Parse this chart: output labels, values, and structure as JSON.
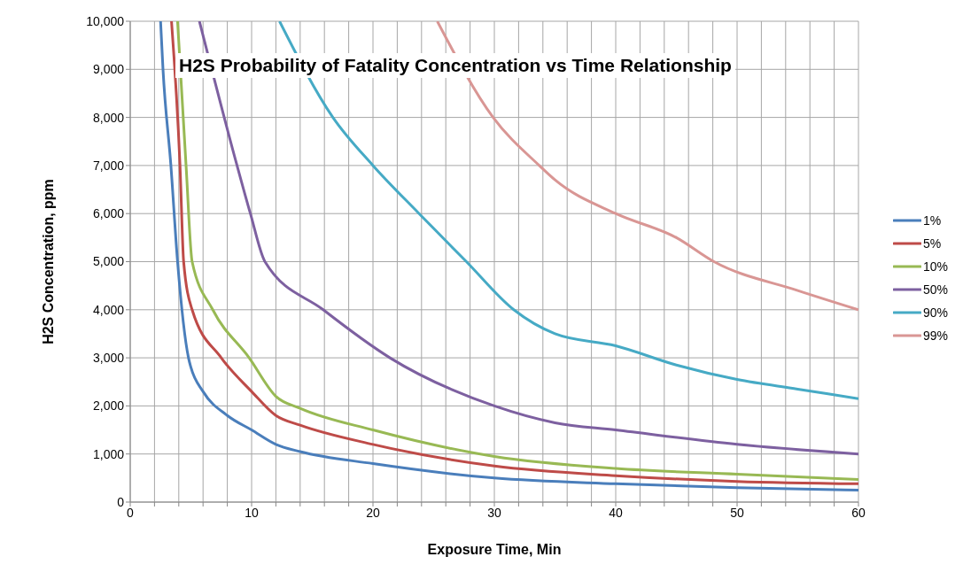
{
  "chart_data": {
    "type": "line",
    "title": "H2S Probability of Fatality Concentration vs Time Relationship",
    "xlabel": "Exposure Time, Min",
    "ylabel": "H2S Concentration, ppm",
    "xlim": [
      0,
      60
    ],
    "xticks": [
      0,
      {
        "value": 2,
        "label": null
      },
      {
        "value": 4,
        "label": null
      },
      {
        "value": 6,
        "label": null
      },
      {
        "value": 8,
        "label": null
      },
      10,
      {
        "value": 12,
        "label": null
      },
      {
        "value": 14,
        "label": null
      },
      {
        "value": 16,
        "label": null
      },
      {
        "value": 18,
        "label": null
      },
      20,
      {
        "value": 22,
        "label": null
      },
      {
        "value": 24,
        "label": null
      },
      {
        "value": 26,
        "label": null
      },
      {
        "value": 28,
        "label": null
      },
      30,
      {
        "value": 32,
        "label": null
      },
      {
        "value": 34,
        "label": null
      },
      {
        "value": 36,
        "label": null
      },
      {
        "value": 38,
        "label": null
      },
      40,
      {
        "value": 42,
        "label": null
      },
      {
        "value": 44,
        "label": null
      },
      {
        "value": 46,
        "label": null
      },
      {
        "value": 48,
        "label": null
      },
      50,
      {
        "value": 52,
        "label": null
      },
      {
        "value": 54,
        "label": null
      },
      {
        "value": 56,
        "label": null
      },
      {
        "value": 58,
        "label": null
      },
      60
    ],
    "ylim": [
      0,
      10000
    ],
    "yticks": [
      {
        "value": 0,
        "label": "0"
      },
      {
        "value": 1000,
        "label": "1,000"
      },
      {
        "value": 2000,
        "label": "2,000"
      },
      {
        "value": 3000,
        "label": "3,000"
      },
      {
        "value": 4000,
        "label": "4,000"
      },
      {
        "value": 5000,
        "label": "5,000"
      },
      {
        "value": 6000,
        "label": "6,000"
      },
      {
        "value": 7000,
        "label": "7,000"
      },
      {
        "value": 8000,
        "label": "8,000"
      },
      {
        "value": 9000,
        "label": "9,000"
      },
      {
        "value": 10000,
        "label": "10,000"
      }
    ],
    "grid": true,
    "legend": "right",
    "marker": "none",
    "line_style": "solid",
    "series": [
      {
        "name": "1%",
        "color": "#4a7ebb",
        "x": [
          2.5,
          2.7,
          3.35,
          3.9,
          4.8,
          5,
          6,
          8,
          10,
          12,
          14,
          20,
          30,
          40,
          50,
          60
        ],
        "values": [
          10000,
          9000,
          7000,
          5000,
          3000,
          2800,
          2300,
          1800,
          1500,
          1200,
          1050,
          800,
          500,
          380,
          300,
          250
        ]
      },
      {
        "name": "5%",
        "color": "#be4b48",
        "x": [
          3.4,
          4.1,
          4.4,
          5.1,
          7.5,
          10,
          12,
          14,
          20,
          30,
          40,
          50,
          60
        ],
        "values": [
          10000,
          7000,
          5000,
          4000,
          3000,
          2300,
          1800,
          1600,
          1200,
          750,
          550,
          430,
          380
        ]
      },
      {
        "name": "10%",
        "color": "#98b954",
        "x": [
          3.9,
          4.6,
          5.1,
          6.8,
          9.8,
          12,
          14,
          20,
          30,
          40,
          50,
          60
        ],
        "values": [
          10000,
          7000,
          5000,
          4000,
          3000,
          2200,
          1950,
          1500,
          950,
          700,
          580,
          470
        ]
      },
      {
        "name": "50%",
        "color": "#7d60a0",
        "x": [
          5.7,
          8.8,
          9.9,
          11.1,
          15.9,
          21.4,
          30,
          35,
          40,
          50,
          60
        ],
        "values": [
          10000,
          7000,
          6000,
          5000,
          4000,
          3000,
          2000,
          1650,
          1500,
          1200,
          1000
        ]
      },
      {
        "name": "90%",
        "color": "#46aac5",
        "x": [
          12.3,
          16.7,
          20,
          23.8,
          27.7,
          31.6,
          35,
          40,
          45,
          50,
          55,
          60
        ],
        "values": [
          10000,
          8000,
          7000,
          6000,
          5000,
          4000,
          3500,
          3250,
          2850,
          2550,
          2350,
          2150
        ]
      },
      {
        "name": "99%",
        "color": "#d99694",
        "x": [
          25.3,
          29.9,
          33.7,
          35,
          40,
          45,
          48.1,
          55,
          60
        ],
        "values": [
          10000,
          8000,
          7000,
          6700,
          6000,
          5500,
          5000,
          4400,
          4000
        ]
      }
    ]
  }
}
